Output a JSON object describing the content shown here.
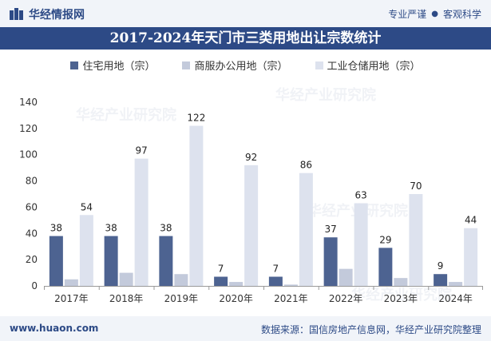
{
  "header": {
    "brand": "华经情报网",
    "tagline_1": "专业严谨",
    "tagline_2": "客观科学"
  },
  "chart_data": {
    "type": "bar",
    "title": "2017-2024年天门市三类用地出让宗数统计",
    "categories": [
      "2017年",
      "2018年",
      "2019年",
      "2020年",
      "2021年",
      "2022年",
      "2023年",
      "2024年"
    ],
    "series": [
      {
        "name": "住宅用地（宗）",
        "values": [
          38,
          38,
          38,
          7,
          7,
          37,
          29,
          9
        ],
        "color": "#4d6391",
        "labels": [
          "38",
          "38",
          "38",
          "7",
          "7",
          "37",
          "29",
          "9"
        ]
      },
      {
        "name": "商服办公用地（宗）",
        "values": [
          5,
          10,
          9,
          3,
          1,
          13,
          6,
          3
        ],
        "color": "#c3cadb",
        "labels": [
          "",
          "",
          "",
          "",
          "",
          "",
          "",
          ""
        ]
      },
      {
        "name": "工业仓储用地（宗）",
        "values": [
          54,
          97,
          122,
          92,
          86,
          63,
          70,
          44
        ],
        "color": "#dde2ee",
        "labels": [
          "54",
          "97",
          "122",
          "92",
          "86",
          "63",
          "70",
          "44"
        ]
      }
    ],
    "yticks": [
      "0",
      "20",
      "40",
      "60",
      "80",
      "100",
      "120",
      "140"
    ],
    "ylim": [
      0,
      140
    ],
    "xlabel": "",
    "ylabel": "",
    "legend_position": "top-center",
    "grid": false
  },
  "footer": {
    "website": "www.huaon.com",
    "source": "数据来源：国信房地产信息网，华经产业研究院整理"
  },
  "watermark_text": "华经产业研究院"
}
